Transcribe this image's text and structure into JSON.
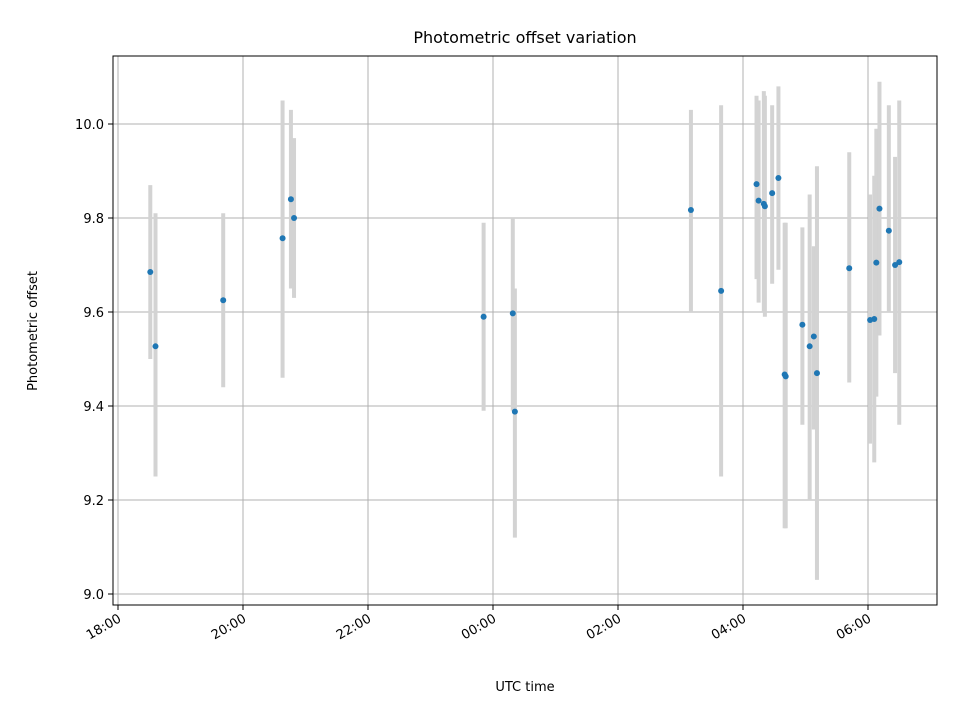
{
  "chart_data": {
    "type": "scatter",
    "title": "Photometric offset variation",
    "xlabel": "UTC time",
    "ylabel": "Photometric offset",
    "x_ticks": [
      "18:00",
      "20:00",
      "22:00",
      "00:00",
      "02:00",
      "04:00",
      "06:00"
    ],
    "y_ticks": [
      "9.0",
      "9.2",
      "9.4",
      "9.6",
      "9.8",
      "10.0"
    ],
    "ylim": [
      8.98,
      10.15
    ],
    "grid": true,
    "point_color": "#1f77b4",
    "errorbar_color": "#d3d3d3",
    "points": [
      {
        "t": "18:31",
        "y": 9.685,
        "lo": 9.5,
        "hi": 9.87
      },
      {
        "t": "18:36",
        "y": 9.527,
        "lo": 9.25,
        "hi": 9.81
      },
      {
        "t": "19:41",
        "y": 9.625,
        "lo": 9.44,
        "hi": 9.81
      },
      {
        "t": "20:38",
        "y": 9.757,
        "lo": 9.46,
        "hi": 10.05
      },
      {
        "t": "20:46",
        "y": 9.84,
        "lo": 9.65,
        "hi": 10.03
      },
      {
        "t": "20:49",
        "y": 9.8,
        "lo": 9.63,
        "hi": 9.97
      },
      {
        "t": "23:51",
        "y": 9.59,
        "lo": 9.39,
        "hi": 9.79
      },
      {
        "t": "00:19",
        "y": 9.597,
        "lo": 9.39,
        "hi": 9.8
      },
      {
        "t": "00:21",
        "y": 9.388,
        "lo": 9.12,
        "hi": 9.65
      },
      {
        "t": "03:10",
        "y": 9.817,
        "lo": 9.6,
        "hi": 10.03
      },
      {
        "t": "03:39",
        "y": 9.645,
        "lo": 9.25,
        "hi": 10.04
      },
      {
        "t": "04:13",
        "y": 9.872,
        "lo": 9.67,
        "hi": 10.06
      },
      {
        "t": "04:15",
        "y": 9.837,
        "lo": 9.62,
        "hi": 10.05
      },
      {
        "t": "04:20",
        "y": 9.83,
        "lo": 9.6,
        "hi": 10.07
      },
      {
        "t": "04:21",
        "y": 9.825,
        "lo": 9.59,
        "hi": 10.06
      },
      {
        "t": "04:28",
        "y": 9.853,
        "lo": 9.66,
        "hi": 10.04
      },
      {
        "t": "04:34",
        "y": 9.885,
        "lo": 9.69,
        "hi": 10.08
      },
      {
        "t": "04:40",
        "y": 9.467,
        "lo": 9.14,
        "hi": 9.79
      },
      {
        "t": "04:41",
        "y": 9.463,
        "lo": 9.14,
        "hi": 9.79
      },
      {
        "t": "04:57",
        "y": 9.573,
        "lo": 9.36,
        "hi": 9.78
      },
      {
        "t": "05:04",
        "y": 9.527,
        "lo": 9.2,
        "hi": 9.85
      },
      {
        "t": "05:08",
        "y": 9.548,
        "lo": 9.35,
        "hi": 9.74
      },
      {
        "t": "05:11",
        "y": 9.47,
        "lo": 9.03,
        "hi": 9.91
      },
      {
        "t": "05:42",
        "y": 9.693,
        "lo": 9.45,
        "hi": 9.94
      },
      {
        "t": "06:02",
        "y": 9.583,
        "lo": 9.32,
        "hi": 9.85
      },
      {
        "t": "06:06",
        "y": 9.585,
        "lo": 9.28,
        "hi": 9.89
      },
      {
        "t": "06:08",
        "y": 9.705,
        "lo": 9.42,
        "hi": 9.99
      },
      {
        "t": "06:11",
        "y": 9.82,
        "lo": 9.55,
        "hi": 10.09
      },
      {
        "t": "06:20",
        "y": 9.773,
        "lo": 9.6,
        "hi": 10.04
      },
      {
        "t": "06:26",
        "y": 9.7,
        "lo": 9.47,
        "hi": 9.93
      },
      {
        "t": "06:30",
        "y": 9.706,
        "lo": 9.36,
        "hi": 10.05
      }
    ]
  }
}
